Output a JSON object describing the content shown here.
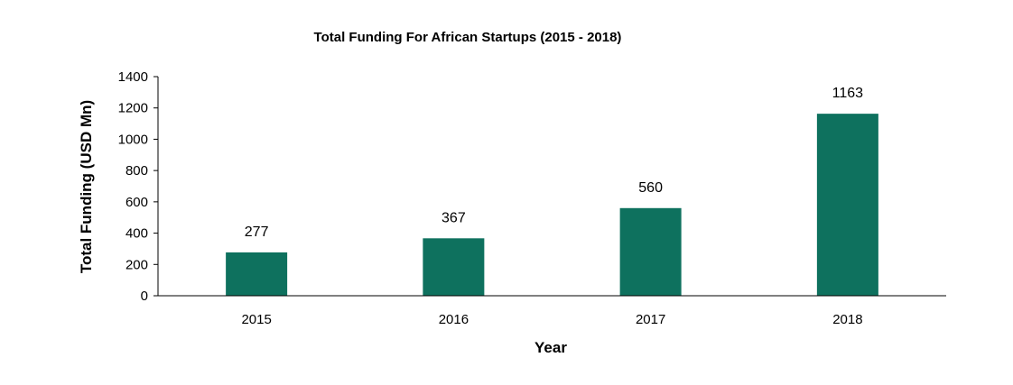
{
  "chart_data": {
    "type": "bar",
    "title": "Total Funding For African Startups (2015 - 2018)",
    "xlabel": "Year",
    "ylabel": "Total Funding (USD Mn)",
    "categories": [
      "2015",
      "2016",
      "2017",
      "2018"
    ],
    "values": [
      277,
      367,
      560,
      1163
    ],
    "ylim": [
      0,
      1400
    ],
    "yticks": [
      0,
      200,
      400,
      600,
      800,
      1000,
      1200,
      1400
    ],
    "grid": false,
    "legend": "none",
    "bar_color": "#0E715E"
  }
}
